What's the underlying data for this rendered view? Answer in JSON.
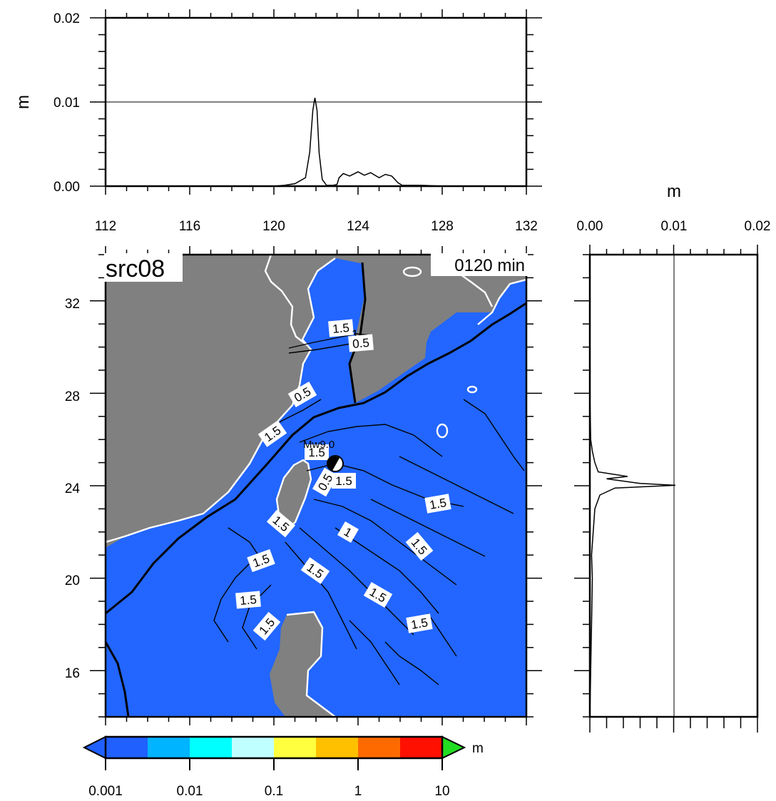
{
  "map": {
    "source_label": "src08",
    "time_label": "0120 min",
    "epicenter_label": "Mw9.0",
    "lon_ticks": [
      "112",
      "116",
      "120",
      "124",
      "128",
      "132"
    ],
    "lat_ticks": [
      "32",
      "28",
      "24",
      "20",
      "16"
    ],
    "contour_labels": [
      "1.5",
      "1",
      "0.5",
      "0.5",
      "1.5",
      "1.5",
      "0.5",
      "1.5",
      "1.5",
      "1.5",
      "1",
      "1.5",
      "1.5",
      "1.5",
      "1.5",
      "1.5",
      "1.5",
      "1.5"
    ],
    "colors": {
      "ocean": "#2266ff",
      "land": "#808080"
    }
  },
  "top_profile": {
    "ylabel": "m",
    "y_ticks": [
      "0.02",
      "0.01",
      "0.00"
    ]
  },
  "right_profile": {
    "xlabel": "m",
    "x_ticks": [
      "0.00",
      "0.01",
      "0.02"
    ]
  },
  "colorbar": {
    "unit": "m",
    "tick_labels": [
      "0.001",
      "0.01",
      "0.1",
      "1",
      "10"
    ],
    "segment_colors": [
      "#2060ff",
      "#00b4ff",
      "#00ffff",
      "#bfffff",
      "#ffff40",
      "#ffc000",
      "#ff6a00",
      "#ff1000"
    ],
    "under_color": "#2060ff",
    "over_color": "#22dd22"
  },
  "chart_data": [
    {
      "type": "line",
      "title": "",
      "xlabel": "",
      "ylabel": "m",
      "xlim": [
        112,
        132
      ],
      "ylim": [
        0,
        0.02
      ],
      "grid": "horizontal line at 0.01",
      "series": [
        {
          "x": [
            112,
            118,
            120,
            120.5,
            121,
            121.5,
            121.7,
            121.85,
            121.95,
            122.05,
            122.15,
            122.3,
            122.5,
            122.8,
            123,
            123.1,
            123.3,
            123.6,
            124,
            124.3,
            124.6,
            125,
            125.3,
            125.6,
            125.9,
            126.1,
            127,
            128,
            132
          ],
          "y": [
            0,
            0,
            0,
            0.0001,
            0.0003,
            0.001,
            0.004,
            0.009,
            0.0105,
            0.009,
            0.004,
            0.0008,
            0.0001,
            0.0001,
            0.0002,
            0.001,
            0.0015,
            0.0012,
            0.0017,
            0.0013,
            0.0016,
            0.001,
            0.0014,
            0.0012,
            0.0004,
            0.0001,
            0.0001,
            0,
            0
          ]
        }
      ]
    },
    {
      "type": "line",
      "title": "",
      "xlabel": "m",
      "ylabel": "",
      "xlim": [
        0,
        0.02
      ],
      "ylim": [
        14,
        34
      ],
      "grid": "vertical line at 0.01",
      "series": [
        {
          "y": [
            14,
            16,
            18,
            20,
            21,
            22,
            23,
            23.6,
            23.9,
            24.02,
            24.1,
            24.3,
            24.4,
            24.6,
            25,
            25.5,
            26,
            28,
            30,
            32,
            34
          ],
          "x": [
            0,
            0.0001,
            0.0002,
            0.0003,
            0.0002,
            0.0004,
            0.0006,
            0.0012,
            0.003,
            0.0102,
            0.006,
            0.002,
            0.0045,
            0.001,
            0.0006,
            0.0003,
            0.0001,
            0,
            0,
            0,
            0
          ]
        }
      ]
    }
  ]
}
